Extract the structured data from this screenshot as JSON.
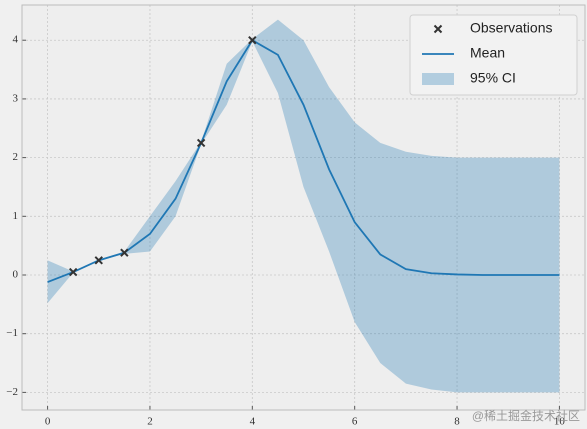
{
  "chart_data": {
    "type": "line",
    "xlim": [
      -0.5,
      10.5
    ],
    "ylim": [
      -2.3,
      4.6
    ],
    "xticks": [
      0,
      2,
      4,
      6,
      8,
      10
    ],
    "yticks": [
      {
        "value": -2,
        "label": "−2"
      },
      {
        "value": -1,
        "label": "−1"
      },
      0,
      1,
      2,
      3,
      4
    ],
    "grid": true,
    "legend": "upper right",
    "x": [
      0,
      0.5,
      1,
      1.5,
      2,
      2.5,
      3,
      3.5,
      4,
      4.5,
      5,
      5.5,
      6,
      6.5,
      7,
      7.5,
      8,
      8.5,
      9,
      9.5,
      10
    ],
    "series": [
      {
        "name": "Mean",
        "color": "#1f77b4",
        "values": [
          -0.12,
          0.05,
          0.25,
          0.38,
          0.7,
          1.3,
          2.25,
          3.3,
          4.0,
          3.75,
          2.9,
          1.8,
          0.9,
          0.35,
          0.1,
          0.03,
          0.01,
          0,
          0,
          0,
          0
        ]
      }
    ],
    "band": {
      "name": "95% CI",
      "color": "#1f77b4",
      "upper": [
        0.25,
        0.06,
        0.26,
        0.4,
        1.0,
        1.6,
        2.27,
        3.6,
        4.02,
        4.35,
        4.0,
        3.2,
        2.6,
        2.25,
        2.1,
        2.03,
        2.0,
        2.0,
        2.0,
        2.0,
        2.0
      ],
      "lower": [
        -0.48,
        0.04,
        0.24,
        0.36,
        0.4,
        1.0,
        2.23,
        2.9,
        3.98,
        3.1,
        1.5,
        0.4,
        -0.8,
        -1.5,
        -1.85,
        -1.95,
        -2.0,
        -2.0,
        -2.0,
        -2.0,
        -2.0
      ]
    },
    "observations": {
      "name": "Observations",
      "color": "#333333",
      "x": [
        0.5,
        1,
        1.5,
        3,
        4
      ],
      "y": [
        0.05,
        0.25,
        0.38,
        2.25,
        4.0
      ]
    },
    "watermark": "@稀土掘金技术社区"
  }
}
